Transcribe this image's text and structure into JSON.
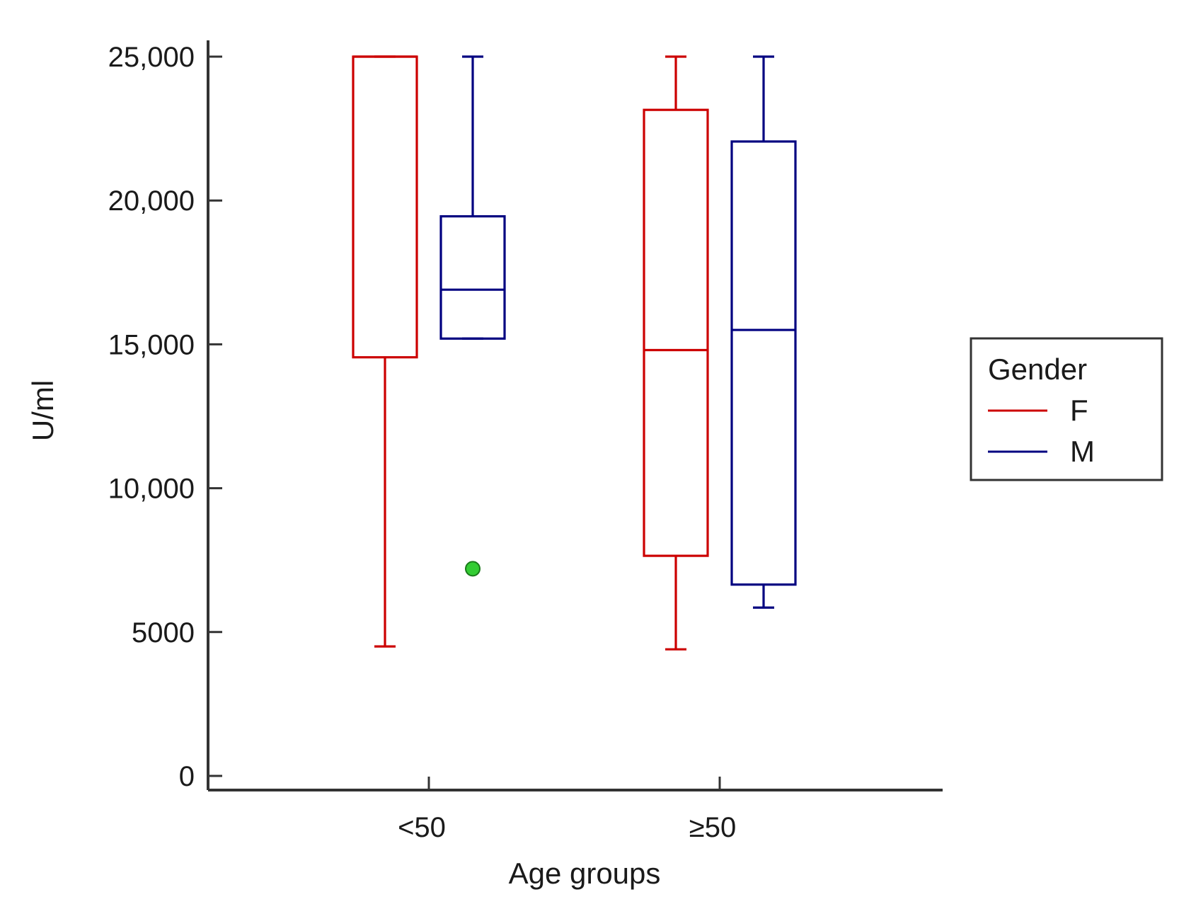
{
  "chart_data": {
    "type": "box",
    "title": "",
    "xlabel": "Age groups",
    "ylabel": "U/ml",
    "ylim": [
      0,
      25000
    ],
    "yticks": [
      0,
      5000,
      10000,
      15000,
      20000,
      25000
    ],
    "ytick_labels": [
      "0",
      "5000",
      "10,000",
      "15,000",
      "20,000",
      "25,000"
    ],
    "categories": [
      "<50",
      "≥50"
    ],
    "legend": {
      "title": "Gender",
      "position": "right"
    },
    "series": [
      {
        "name": "F",
        "color": "#cc0000",
        "boxes": [
          {
            "category": "<50",
            "whisker_low": 4500,
            "q1": 14550,
            "median": 25000,
            "q3": 25000,
            "whisker_high": 25000
          },
          {
            "category": "≥50",
            "whisker_low": 4400,
            "q1": 7650,
            "median": 14800,
            "q3": 23150,
            "whisker_high": 25000
          }
        ]
      },
      {
        "name": "M",
        "color": "#000080",
        "boxes": [
          {
            "category": "<50",
            "whisker_low": 15200,
            "q1": 15200,
            "median": 16900,
            "q3": 19450,
            "whisker_high": 25000,
            "outliers": [
              7200
            ]
          },
          {
            "category": "≥50",
            "whisker_low": 5850,
            "q1": 6650,
            "median": 15500,
            "q3": 22050,
            "whisker_high": 25000
          }
        ]
      }
    ],
    "outlier_color": "#33cc33"
  }
}
